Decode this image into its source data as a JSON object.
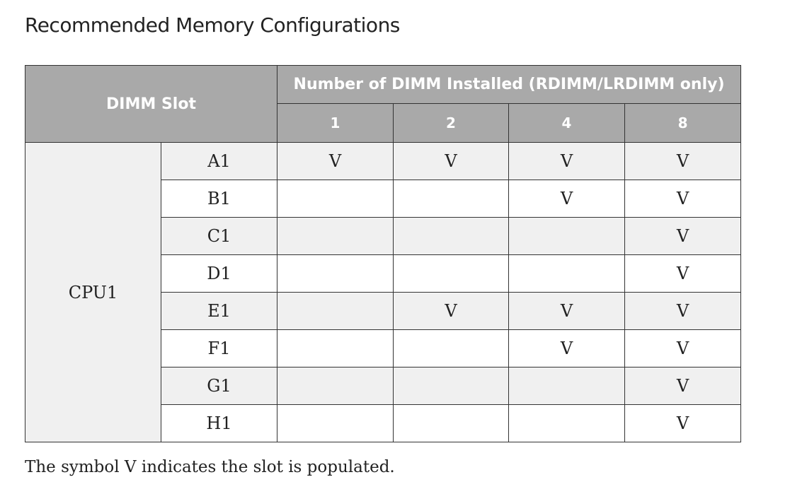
{
  "title": "Recommended Memory Configurations",
  "table": {
    "slot_header": "DIMM Slot",
    "count_header": "Number of DIMM Installed (RDIMM/LRDIMM only)",
    "counts": [
      "1",
      "2",
      "4",
      "8"
    ],
    "cpu_label": "CPU1",
    "rows": [
      {
        "slot": "A1",
        "cells": [
          "V",
          "V",
          "V",
          "V"
        ]
      },
      {
        "slot": "B1",
        "cells": [
          "",
          "",
          "V",
          "V"
        ]
      },
      {
        "slot": "C1",
        "cells": [
          "",
          "",
          "",
          "V"
        ]
      },
      {
        "slot": "D1",
        "cells": [
          "",
          "",
          "",
          "V"
        ]
      },
      {
        "slot": "E1",
        "cells": [
          "",
          "V",
          "V",
          "V"
        ]
      },
      {
        "slot": "F1",
        "cells": [
          "",
          "",
          "V",
          "V"
        ]
      },
      {
        "slot": "G1",
        "cells": [
          "",
          "",
          "",
          "V"
        ]
      },
      {
        "slot": "H1",
        "cells": [
          "",
          "",
          "",
          "V"
        ]
      }
    ]
  },
  "footnote": "The symbol V indicates the slot is populated."
}
